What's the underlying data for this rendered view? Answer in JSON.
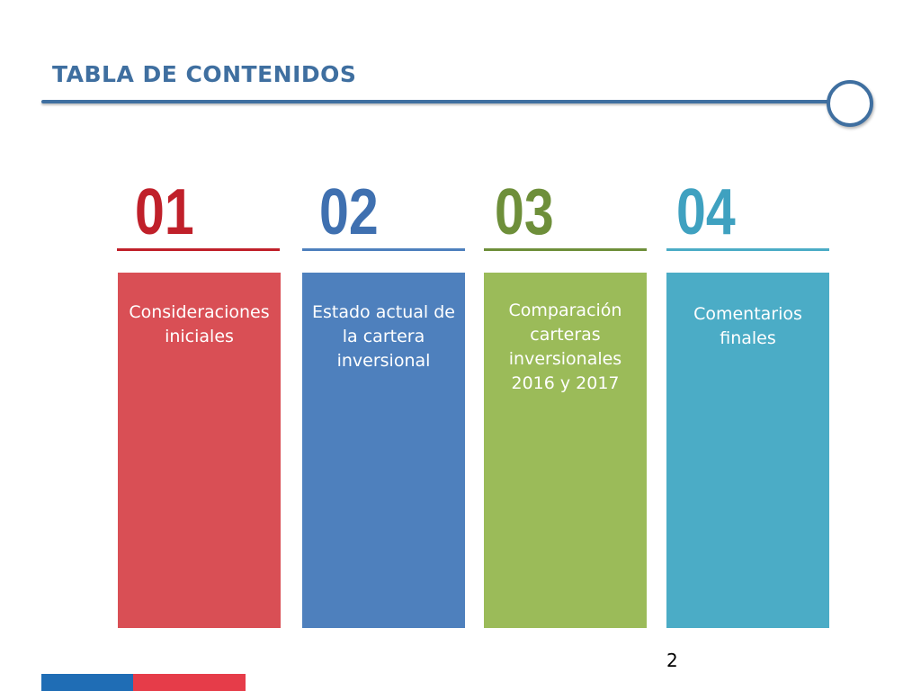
{
  "header": {
    "title": "TABLA DE CONTENIDOS"
  },
  "sections": [
    {
      "number": "01",
      "label": "Consideraciones iniciales",
      "number_color": "#c0202a",
      "panel_color": "#d94f55"
    },
    {
      "number": "02",
      "label": "Estado actual de la cartera inversional",
      "number_color": "#3f70b0",
      "panel_color": "#4e80bd"
    },
    {
      "number": "03",
      "label": "Comparación carteras inversionales 2016 y 2017",
      "number_color": "#6e8f3a",
      "panel_color": "#9bbb59"
    },
    {
      "number": "04",
      "label": "Comentarios finales",
      "number_color": "#3fa1c0",
      "panel_color": "#4bacc6"
    }
  ],
  "footer": {
    "page_number": "2",
    "bar_colors": [
      "#1f6db5",
      "#e63c49"
    ]
  },
  "colors": {
    "accent": "#3f6fa0"
  }
}
